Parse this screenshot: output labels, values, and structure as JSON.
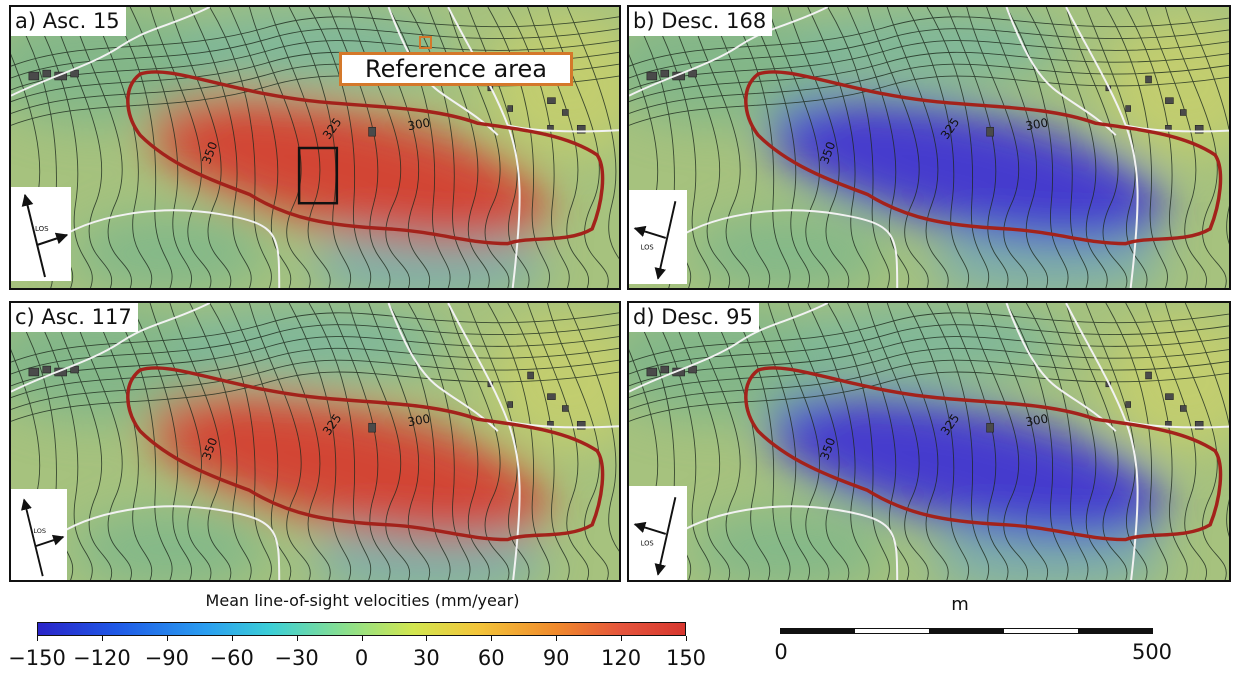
{
  "panels": [
    {
      "id": "a",
      "label": "a) Asc. 15",
      "los": "LOS",
      "contour_labels": [
        "350",
        "325",
        "300"
      ]
    },
    {
      "id": "b",
      "label": "b) Desc. 168",
      "los": "LOS",
      "contour_labels": [
        "350",
        "325",
        "300"
      ]
    },
    {
      "id": "c",
      "label": "c) Asc. 117",
      "los": "LOS",
      "contour_labels": [
        "350",
        "325",
        "300"
      ]
    },
    {
      "id": "d",
      "label": "d) Desc. 95",
      "los": "LOS",
      "contour_labels": [
        "350",
        "325",
        "300"
      ]
    }
  ],
  "reference_area": "Reference area",
  "colorbar": {
    "title": "Mean line-of-sight velocities (mm/year)",
    "ticks": [
      "−150",
      "−120",
      "−90",
      "−60",
      "−30",
      "0",
      "30",
      "60",
      "90",
      "120",
      "150"
    ]
  },
  "scale_bar": {
    "unit": "m",
    "min_label": "0",
    "max_label": "500"
  },
  "colors": {
    "landslide_outline": "#a3221b",
    "positive_velocity": "#d7372f",
    "negative_velocity": "#3b2fd6",
    "neutral_background": "#8fb97a",
    "reference_area_border": "#d4782a"
  }
}
